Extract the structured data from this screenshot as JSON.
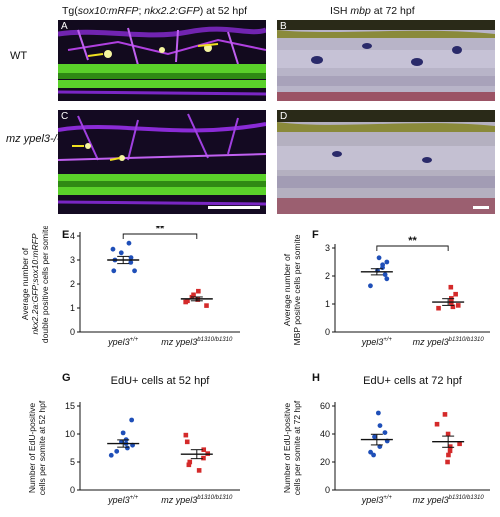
{
  "header": {
    "left_prefix": "Tg(",
    "left_gene1": "sox10:mRFP",
    "left_sep": "; ",
    "left_gene2": "nkx2.2:GFP",
    "left_suffix": ") at 52 hpf",
    "right_prefix": "ISH ",
    "right_gene": "mbp",
    "right_suffix": " at 72 hpf"
  },
  "rows": {
    "wt": "WT",
    "mutant": "mz ypel3-/-"
  },
  "panels": {
    "A": "A",
    "B": "B",
    "C": "C",
    "D": "D"
  },
  "chart_labels": {
    "E": "E",
    "F": "F",
    "G": "G",
    "H": "H"
  },
  "colors": {
    "wt": "#1f4fb8",
    "mutant": "#d42a2a",
    "green": "#5ad12a",
    "magenta": "#8a2bd6"
  },
  "chart_data": [
    {
      "id": "E",
      "type": "scatter",
      "ylabel_lines": [
        "Average number of",
        "nkx2.2a:GFP;sox10:mRFP",
        "double positive cells per somite"
      ],
      "ylim": [
        0,
        4
      ],
      "yticks": [
        0,
        1,
        2,
        3,
        4
      ],
      "categories": [
        {
          "base": "ypel3",
          "sup": "+/+"
        },
        {
          "base": "mz ypel3",
          "sup": "b1310/b1310"
        }
      ],
      "series": [
        {
          "values": [
            3.7,
            3.45,
            3.3,
            3.1,
            3.0,
            2.9,
            2.55,
            2.55
          ],
          "mean": 3.0,
          "sem": 0.15,
          "marker": "circle"
        },
        {
          "values": [
            1.7,
            1.55,
            1.45,
            1.35,
            1.3,
            1.25,
            1.1
          ],
          "mean": 1.38,
          "sem": 0.08,
          "marker": "square"
        }
      ],
      "significance": "**"
    },
    {
      "id": "F",
      "type": "scatter",
      "ylabel_lines": [
        "Average number of",
        "MBP positive cells per somite"
      ],
      "ylim": [
        0,
        3
      ],
      "yticks": [
        0,
        1,
        2,
        3
      ],
      "categories": [
        {
          "base": "ypel3",
          "sup": "+/+"
        },
        {
          "base": "mz ypel3",
          "sup": "b1310/b1310"
        }
      ],
      "series": [
        {
          "values": [
            2.65,
            2.5,
            2.4,
            2.3,
            2.2,
            2.05,
            1.9,
            1.65
          ],
          "mean": 2.15,
          "sem": 0.11,
          "marker": "circle"
        },
        {
          "values": [
            1.6,
            1.35,
            1.2,
            1.05,
            0.95,
            0.9,
            0.85
          ],
          "mean": 1.07,
          "sem": 0.12,
          "marker": "square"
        }
      ],
      "significance": "**"
    },
    {
      "id": "G",
      "type": "scatter",
      "title": "EdU+  cells at 52 hpf",
      "ylabel_lines": [
        "Number of EdU-positive",
        "cells per somite at 52 hpf"
      ],
      "ylim": [
        0,
        15
      ],
      "yticks": [
        0,
        5,
        10,
        15
      ],
      "categories": [
        {
          "base": "ypel3",
          "sup": "+/+"
        },
        {
          "base": "mz ypel3",
          "sup": "b1310/b1310"
        }
      ],
      "series": [
        {
          "values": [
            12.5,
            10.2,
            9.0,
            8.6,
            8.3,
            8.0,
            7.5,
            6.9,
            6.2
          ],
          "mean": 8.3,
          "sem": 0.65,
          "marker": "circle"
        },
        {
          "values": [
            9.8,
            8.6,
            7.2,
            6.5,
            5.7,
            5.0,
            4.5,
            3.5
          ],
          "mean": 6.4,
          "sem": 0.8,
          "marker": "square"
        }
      ],
      "significance": ""
    },
    {
      "id": "H",
      "type": "scatter",
      "title": "EdU+  cells at 72 hpf",
      "ylabel_lines": [
        "Number of EdU-positive",
        "cells per somite at 72 hpf"
      ],
      "ylim": [
        0,
        60
      ],
      "yticks": [
        0,
        20,
        40,
        60
      ],
      "categories": [
        {
          "base": "ypel3",
          "sup": "+/+"
        },
        {
          "base": "mz ypel3",
          "sup": "b1310/b1310"
        }
      ],
      "series": [
        {
          "values": [
            55,
            46,
            41,
            38,
            35,
            31,
            27,
            25
          ],
          "mean": 36,
          "sem": 3.8,
          "marker": "circle"
        },
        {
          "values": [
            54,
            47,
            40,
            33,
            31,
            28,
            25,
            20
          ],
          "mean": 34.5,
          "sem": 4.0,
          "marker": "square"
        }
      ],
      "significance": ""
    }
  ]
}
